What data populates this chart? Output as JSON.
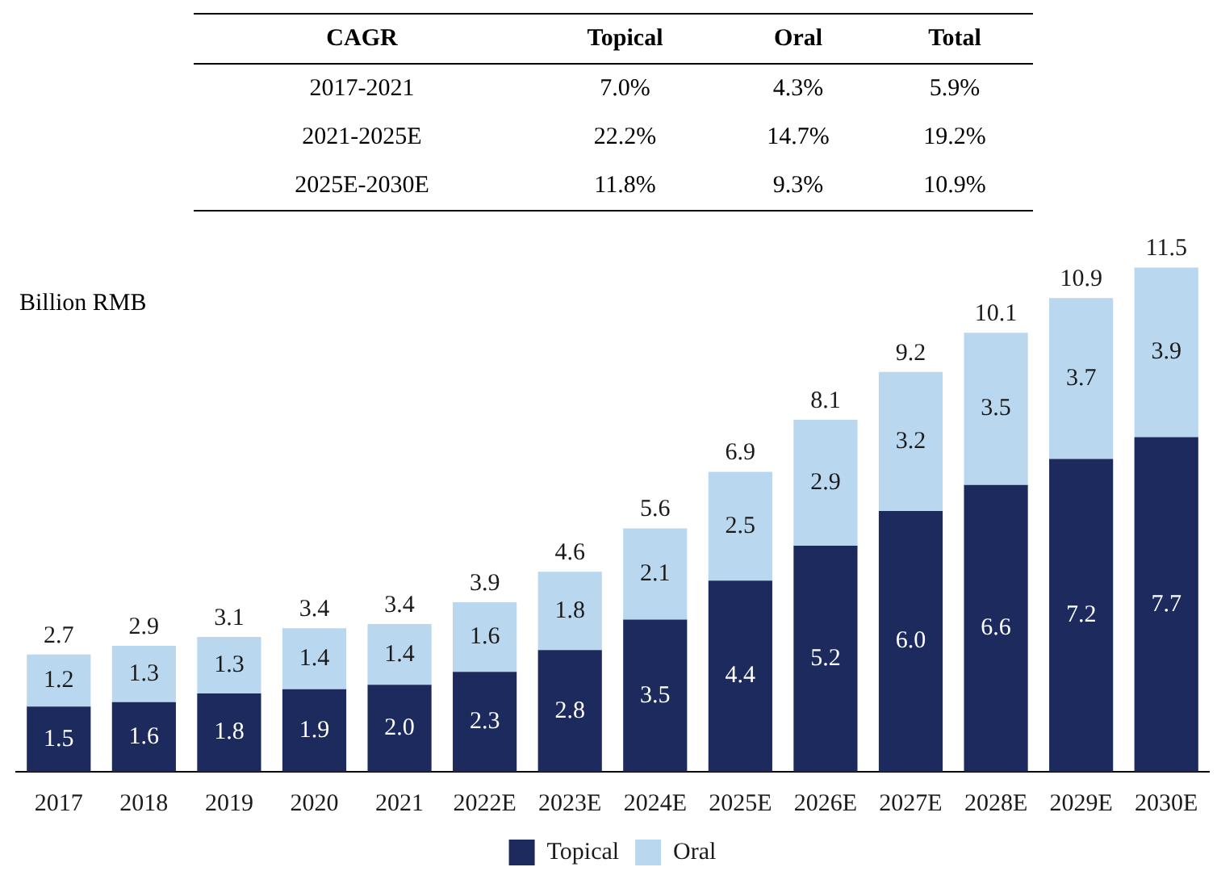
{
  "chart_data": {
    "type": "bar",
    "stacked": true,
    "ylabel": "Billion RMB",
    "categories": [
      "2017",
      "2018",
      "2019",
      "2020",
      "2021",
      "2022E",
      "2023E",
      "2024E",
      "2025E",
      "2026E",
      "2027E",
      "2028E",
      "2029E",
      "2030E"
    ],
    "series": [
      {
        "name": "Topical",
        "color": "#1c2a5e",
        "values": [
          1.5,
          1.6,
          1.8,
          1.9,
          2.0,
          2.3,
          2.8,
          3.5,
          4.4,
          5.2,
          6.0,
          6.6,
          7.2,
          7.7
        ],
        "value_labels": [
          "1.5",
          "1.6",
          "1.8",
          "1.9",
          "2.0",
          "2.3",
          "2.8",
          "3.5",
          "4.4",
          "5.2",
          "6.0",
          "6.6",
          "7.2",
          "7.7"
        ]
      },
      {
        "name": "Oral",
        "color": "#b9d7ee",
        "values": [
          1.2,
          1.3,
          1.3,
          1.4,
          1.4,
          1.6,
          1.8,
          2.1,
          2.5,
          2.9,
          3.2,
          3.5,
          3.7,
          3.9
        ],
        "value_labels": [
          "1.2",
          "1.3",
          "1.3",
          "1.4",
          "1.4",
          "1.6",
          "1.8",
          "2.1",
          "2.5",
          "2.9",
          "3.2",
          "3.5",
          "3.7",
          "3.9"
        ]
      }
    ],
    "totals": [
      "2.7",
      "2.9",
      "3.1",
      "3.4",
      "3.4",
      "3.9",
      "4.6",
      "5.6",
      "6.9",
      "8.1",
      "9.2",
      "10.1",
      "10.9",
      "11.5"
    ],
    "legend": "bottom",
    "grid": false,
    "tick_labels": "x",
    "annotations": [
      "CAGR",
      "Topical",
      "Oral",
      "Total",
      "2017-2021",
      "7.0%",
      "4.3%",
      "5.9%",
      "2021-2025E",
      "22.2%",
      "14.7%",
      "19.2%",
      "2025E-2030E",
      "11.8%",
      "9.3%",
      "10.9%"
    ]
  }
}
